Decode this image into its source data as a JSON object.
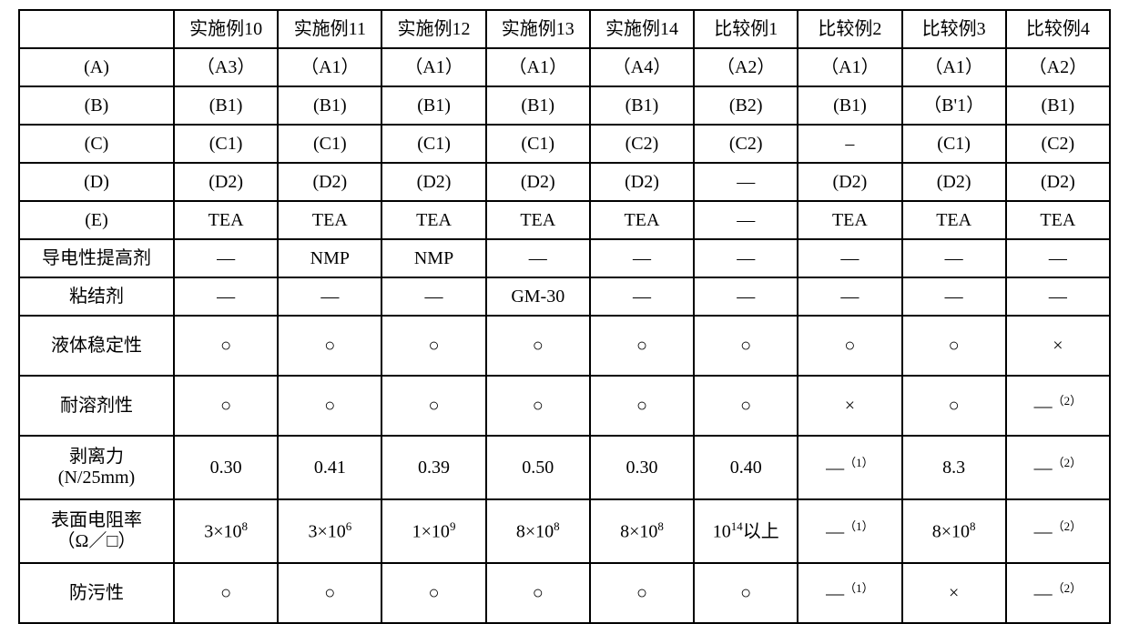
{
  "table": {
    "background_color": "#ffffff",
    "border_color": "#000000",
    "text_color": "#000000",
    "font_size_pt": 15,
    "columns": [
      "",
      "实施例10",
      "实施例11",
      "实施例12",
      "实施例13",
      "实施例14",
      "比较例1",
      "比较例2",
      "比较例3",
      "比较例4"
    ],
    "rows": [
      {
        "label_html": "(A)",
        "cells": [
          "（A3）",
          "（A1）",
          "（A1）",
          "（A1）",
          "（A4）",
          "（A2）",
          "（A1）",
          "（A1）",
          "（A2）"
        ],
        "serif": true
      },
      {
        "label_html": "(B)",
        "cells": [
          "(B1)",
          "(B1)",
          "(B1)",
          "(B1)",
          "(B1)",
          "(B2)",
          "(B1)",
          "（B'1）",
          "(B1)"
        ],
        "serif": true
      },
      {
        "label_html": "(C)",
        "cells": [
          "(C1)",
          "(C1)",
          "(C1)",
          "(C1)",
          "(C2)",
          "(C2)",
          "–",
          "(C1)",
          "(C2)"
        ],
        "serif": true
      },
      {
        "label_html": "(D)",
        "cells": [
          "(D2)",
          "(D2)",
          "(D2)",
          "(D2)",
          "(D2)",
          "—",
          "(D2)",
          "(D2)",
          "(D2)"
        ],
        "serif": true
      },
      {
        "label_html": "(E)",
        "cells": [
          "TEA",
          "TEA",
          "TEA",
          "TEA",
          "TEA",
          "—",
          "TEA",
          "TEA",
          "TEA"
        ],
        "serif": true
      },
      {
        "label_html": "导电性提高剂",
        "cells": [
          "—",
          "NMP",
          "NMP",
          "—",
          "—",
          "—",
          "—",
          "—",
          "—"
        ]
      },
      {
        "label_html": "粘结剂",
        "cells": [
          "—",
          "—",
          "—",
          "GM-30",
          "—",
          "—",
          "—",
          "—",
          "—"
        ]
      },
      {
        "label_html": "液体稳定性",
        "cells": [
          "○",
          "○",
          "○",
          "○",
          "○",
          "○",
          "○",
          "○",
          "×"
        ],
        "tall": true
      },
      {
        "label_html": "耐溶剂性",
        "cells": [
          "○",
          "○",
          "○",
          "○",
          "○",
          "○",
          "×",
          "○",
          "—<sup>（2）</sup>"
        ],
        "tall": true
      },
      {
        "label_html": "剥离力<br>(N/25mm)",
        "cells": [
          "0.30",
          "0.41",
          "0.39",
          "0.50",
          "0.30",
          "0.40",
          "—<sup>（1）</sup>",
          "8.3",
          "—<sup>（2）</sup>"
        ],
        "two_line": true
      },
      {
        "label_html": "表面电阻率<br>（Ω／□）",
        "cells": [
          "3×10<sup>8</sup>",
          "3×10<sup>6</sup>",
          "1×10<sup>9</sup>",
          "8×10<sup>8</sup>",
          "8×10<sup>8</sup>",
          "10<sup>14</sup>以上",
          "—<sup>（1）</sup>",
          "8×10<sup>8</sup>",
          "—<sup>（2）</sup>"
        ],
        "two_line": true
      },
      {
        "label_html": "防污性",
        "cells": [
          "○",
          "○",
          "○",
          "○",
          "○",
          "○",
          "—<sup>（1）</sup>",
          "×",
          "—<sup>（2）</sup>"
        ],
        "tall": true
      }
    ]
  }
}
